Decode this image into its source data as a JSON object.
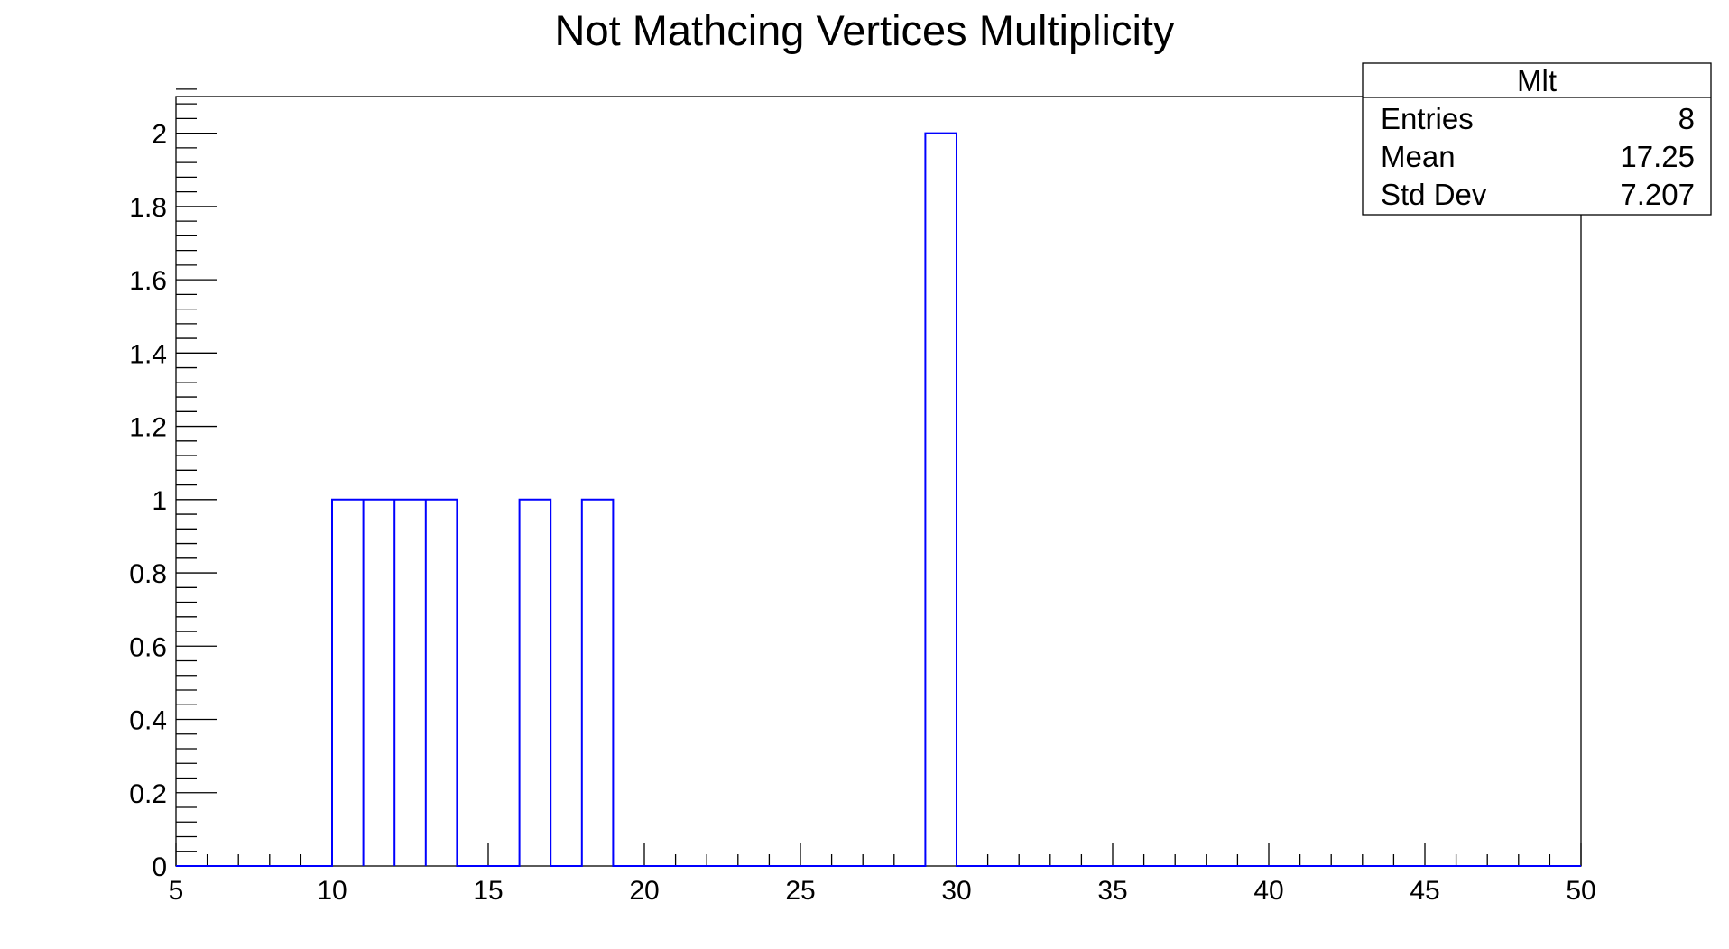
{
  "chart_data": {
    "type": "bar",
    "title": "Not Mathcing Vertices Multiplicity",
    "xlabel": "",
    "ylabel": "",
    "xlim": [
      5,
      50
    ],
    "ylim": [
      0,
      2.1
    ],
    "x_ticks": [
      "5",
      "10",
      "15",
      "20",
      "25",
      "30",
      "35",
      "40",
      "45",
      "50"
    ],
    "y_ticks": [
      "0",
      "0.2",
      "0.4",
      "0.6",
      "0.8",
      "1",
      "1.2",
      "1.4",
      "1.6",
      "1.8",
      "2"
    ],
    "grid": false,
    "line_color": "#0000ff",
    "bins": [
      {
        "x_low": 10,
        "x_high": 11,
        "value": 1
      },
      {
        "x_low": 11,
        "x_high": 12,
        "value": 1
      },
      {
        "x_low": 12,
        "x_high": 13,
        "value": 1
      },
      {
        "x_low": 13,
        "x_high": 14,
        "value": 1
      },
      {
        "x_low": 16,
        "x_high": 17,
        "value": 1
      },
      {
        "x_low": 18,
        "x_high": 19,
        "value": 1
      },
      {
        "x_low": 29,
        "x_high": 30,
        "value": 2
      }
    ],
    "stats_box": {
      "name": "Mlt",
      "placement": "top-right",
      "rows": [
        {
          "label": "Entries",
          "value": "8"
        },
        {
          "label": "Mean",
          "value": "17.25"
        },
        {
          "label": "Std Dev",
          "value": "7.207"
        }
      ]
    }
  }
}
